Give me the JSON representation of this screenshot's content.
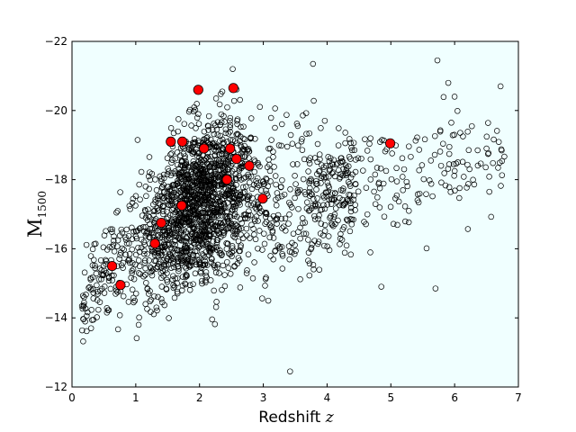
{
  "chart_data": {
    "type": "scatter",
    "xlabel": "Redshift",
    "xlabel_var": "z",
    "ylabel": "M",
    "ylabel_sub": "1500",
    "xlim": [
      0,
      7
    ],
    "ylim": [
      -12,
      -22
    ],
    "y_inverted": true,
    "grid": false,
    "background_color": "#f0ffff",
    "xticks": [
      0,
      1,
      2,
      3,
      4,
      5,
      6,
      7
    ],
    "yticks": [
      -12,
      -14,
      -16,
      -18,
      -20,
      -22
    ],
    "xtick_labels": [
      "0",
      "1",
      "2",
      "3",
      "4",
      "5",
      "6",
      "7"
    ],
    "ytick_labels": [
      "−12",
      "−14",
      "−16",
      "−18",
      "−20",
      "−22"
    ],
    "series": [
      {
        "style": "open-circle",
        "edge_color": "#000000",
        "approx_count": 2200,
        "note_key": "background sample",
        "envelope": [
          [
            0.0,
            -15.8
          ],
          [
            0.5,
            -18.0
          ],
          [
            1.0,
            -19.3
          ],
          [
            1.5,
            -20.3
          ],
          [
            2.0,
            -20.9
          ],
          [
            2.5,
            -21.3
          ],
          [
            3.0,
            -20.8
          ],
          [
            3.5,
            -21.0
          ],
          [
            4.0,
            -20.6
          ],
          [
            5.0,
            -20.3
          ],
          [
            6.0,
            -21.1
          ],
          [
            7.0,
            -20.5
          ]
        ],
        "lower_envelope": [
          [
            0.0,
            -12.0
          ],
          [
            1.0,
            -12.0
          ],
          [
            2.0,
            -13.2
          ],
          [
            3.0,
            -13.3
          ],
          [
            3.5,
            -12.5
          ],
          [
            4.0,
            -14.3
          ],
          [
            5.0,
            -14.8
          ],
          [
            6.0,
            -15.5
          ],
          [
            7.0,
            -16.8
          ]
        ],
        "sample": [
          [
            5.73,
            -21.45
          ],
          [
            6.72,
            -20.7
          ],
          [
            6.0,
            -20.4
          ],
          [
            5.9,
            -20.8
          ],
          [
            3.78,
            -21.35
          ],
          [
            2.52,
            -21.2
          ],
          [
            3.42,
            -12.45
          ],
          [
            5.7,
            -14.85
          ],
          [
            4.85,
            -14.9
          ],
          [
            6.5,
            -18.9
          ]
        ]
      },
      {
        "style": "filled-circle",
        "color": "#ff0000",
        "edge_color": "#000000",
        "x": [
          0.63,
          0.76,
          1.3,
          1.4,
          1.55,
          1.72,
          1.73,
          1.98,
          2.07,
          2.43,
          2.48,
          2.53,
          2.58,
          2.78,
          2.99,
          4.99
        ],
        "y": [
          -15.5,
          -14.95,
          -16.15,
          -16.75,
          -19.1,
          -17.25,
          -19.1,
          -20.6,
          -18.9,
          -18.0,
          -18.9,
          -20.65,
          -18.6,
          -18.4,
          -17.45,
          -19.05
        ]
      }
    ]
  }
}
